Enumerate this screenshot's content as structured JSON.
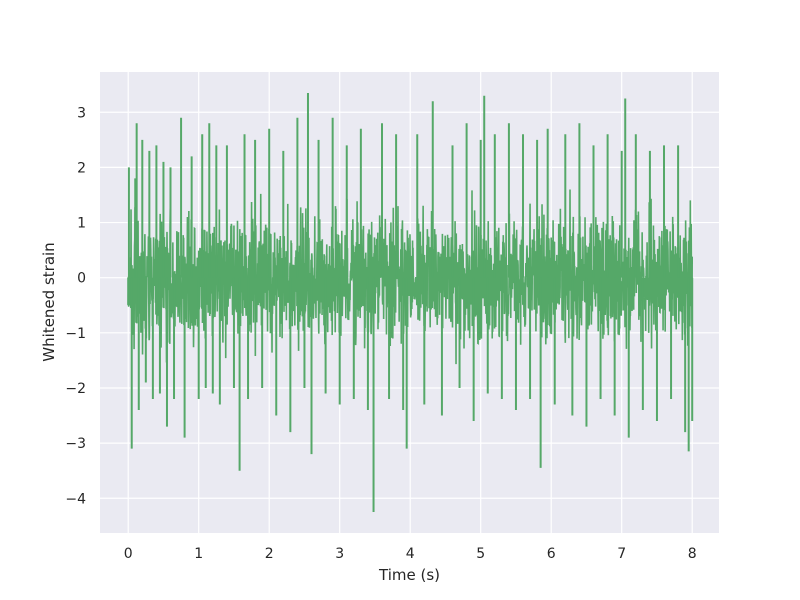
{
  "chart_data": {
    "type": "line",
    "title": "",
    "xlabel": "Time (s)",
    "ylabel": "Whitened strain",
    "xlim": [
      -0.4,
      8.38
    ],
    "ylim": [
      -4.63,
      3.73
    ],
    "x_ticks": [
      0,
      1,
      2,
      3,
      4,
      5,
      6,
      7,
      8
    ],
    "x_tick_labels": [
      "0",
      "1",
      "2",
      "3",
      "4",
      "5",
      "6",
      "7",
      "8"
    ],
    "y_ticks": [
      -4,
      -3,
      -2,
      -1,
      0,
      1,
      2,
      3
    ],
    "y_tick_labels": [
      "−4",
      "−3",
      "−2",
      "−1",
      "0",
      "1",
      "2",
      "3"
    ],
    "grid": true,
    "colors": {
      "series": "#55a868",
      "plot_background": "#eaeaf2",
      "grid": "#ffffff"
    },
    "series": [
      {
        "x": [
          0.0,
          0.01,
          0.05,
          0.1,
          0.12,
          0.15,
          0.2,
          0.25,
          0.3,
          0.35,
          0.4,
          0.45,
          0.5,
          0.55,
          0.6,
          0.65,
          0.75,
          0.8,
          0.9,
          1.0,
          1.05,
          1.1,
          1.15,
          1.2,
          1.25,
          1.3,
          1.4,
          1.5,
          1.58,
          1.65,
          1.7,
          1.8,
          1.9,
          2.0,
          2.1,
          2.2,
          2.3,
          2.4,
          2.5,
          2.55,
          2.6,
          2.7,
          2.8,
          2.9,
          3.0,
          3.1,
          3.2,
          3.3,
          3.4,
          3.48,
          3.6,
          3.7,
          3.8,
          3.9,
          3.95,
          4.1,
          4.2,
          4.32,
          4.45,
          4.6,
          4.7,
          4.8,
          4.9,
          5.0,
          5.05,
          5.1,
          5.2,
          5.3,
          5.4,
          5.5,
          5.6,
          5.7,
          5.8,
          5.85,
          5.95,
          6.05,
          6.2,
          6.3,
          6.4,
          6.5,
          6.6,
          6.7,
          6.8,
          6.9,
          7.0,
          7.05,
          7.1,
          7.2,
          7.3,
          7.4,
          7.5,
          7.6,
          7.7,
          7.8,
          7.9,
          7.95,
          8.0
        ],
        "y": [
          -0.5,
          2.0,
          -3.1,
          1.8,
          2.8,
          -2.4,
          2.5,
          -1.9,
          2.3,
          -2.2,
          2.4,
          -2.1,
          2.1,
          -2.7,
          2.0,
          -2.2,
          2.9,
          -2.9,
          2.2,
          -2.2,
          2.6,
          -2.0,
          2.8,
          -2.1,
          2.4,
          -2.3,
          2.4,
          -2.0,
          -3.5,
          2.6,
          -2.2,
          2.5,
          -2.0,
          2.7,
          -2.5,
          2.3,
          -2.8,
          2.9,
          -2.0,
          3.35,
          -3.2,
          2.5,
          -2.1,
          2.9,
          -2.3,
          2.4,
          -2.2,
          2.7,
          -2.4,
          -4.25,
          2.8,
          -2.2,
          2.6,
          -2.4,
          -3.1,
          2.6,
          -2.3,
          3.2,
          -2.5,
          2.4,
          -2.0,
          2.8,
          -2.6,
          2.5,
          3.3,
          -2.1,
          2.6,
          -2.2,
          2.8,
          -2.4,
          2.6,
          -2.2,
          2.5,
          -3.45,
          2.7,
          -2.3,
          2.6,
          -2.5,
          2.8,
          -2.7,
          2.4,
          -2.2,
          2.6,
          -2.5,
          2.3,
          3.25,
          -2.9,
          2.6,
          -2.4,
          2.3,
          -2.6,
          2.4,
          -2.2,
          2.4,
          -2.8,
          -3.15,
          -2.6
        ]
      }
    ]
  }
}
